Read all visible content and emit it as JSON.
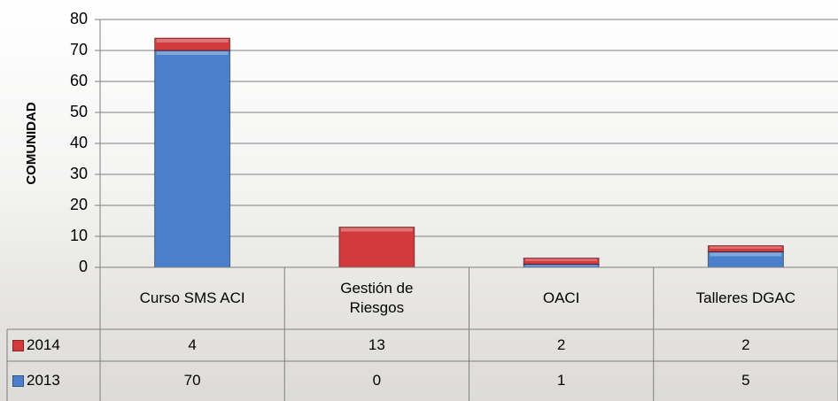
{
  "chart_data": {
    "type": "bar",
    "stacked": true,
    "y_label": "COMUNIDAD",
    "categories": [
      "Curso SMS ACI",
      "Gestión de Riesgos",
      "OACI",
      "Talleres DGAC"
    ],
    "series": [
      {
        "name": "2014",
        "color": "#d23a3c",
        "values": [
          4,
          13,
          2,
          2
        ]
      },
      {
        "name": "2013",
        "color": "#4a80cb",
        "values": [
          70,
          0,
          1,
          5
        ]
      }
    ],
    "ylim": [
      0,
      80
    ],
    "yticks": [
      0,
      10,
      20,
      30,
      40,
      50,
      60,
      70,
      80
    ],
    "grid": true,
    "data_table": true
  }
}
